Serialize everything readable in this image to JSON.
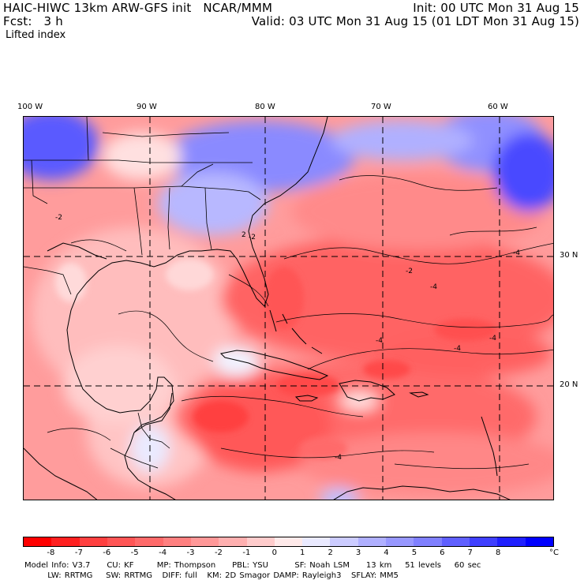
{
  "header": {
    "line1_left": "HAIC-HIWC 13km ARW-GFS init   NCAR/MMM",
    "line1_right": "Init: 00 UTC Mon 31 Aug 15",
    "line2_left": "Fcst:   3 h",
    "line2_right": "Valid: 03 UTC Mon 31 Aug 15 (01 LDT Mon 31 Aug 15)",
    "field_name": "Lifted index"
  },
  "map": {
    "lon_labels": [
      "100 W",
      "90 W",
      "80 W",
      "70 W",
      "60 W"
    ],
    "lat_labels": [
      "30 N",
      "20 N"
    ],
    "contour_labels": [
      "2",
      "-2",
      "-2",
      "-4",
      "-4",
      "-4",
      "-4",
      "-4",
      "-4",
      "-2"
    ]
  },
  "colorbar": {
    "labels": [
      "-8",
      "-7",
      "-6",
      "-5",
      "-4",
      "-3",
      "-2",
      "-1",
      "0",
      "1",
      "2",
      "3",
      "4",
      "5",
      "6",
      "7",
      "8"
    ],
    "unit": "°C",
    "colors": [
      "#ff0000",
      "#ff2020",
      "#ff4040",
      "#ff5555",
      "#ff6a6a",
      "#ff8080",
      "#ff9898",
      "#ffb0b0",
      "#ffcccc",
      "#ffeaea",
      "#eaeaff",
      "#ccccff",
      "#b0b0ff",
      "#9898ff",
      "#8080ff",
      "#6060ff",
      "#4040ff",
      "#2020ff",
      "#0000ff"
    ]
  },
  "footer": {
    "line1": "Model Info: V3.7     CU: KF       MP: Thompson     PBL: YSU        SF: Noah LSM     13 km    51 levels    60 sec",
    "line2": "       LW: RRTMG    SW: RRTMG   DIFF: full   KM: 2D Smagor DAMP: Rayleigh3   SFLAY: MM5"
  }
}
